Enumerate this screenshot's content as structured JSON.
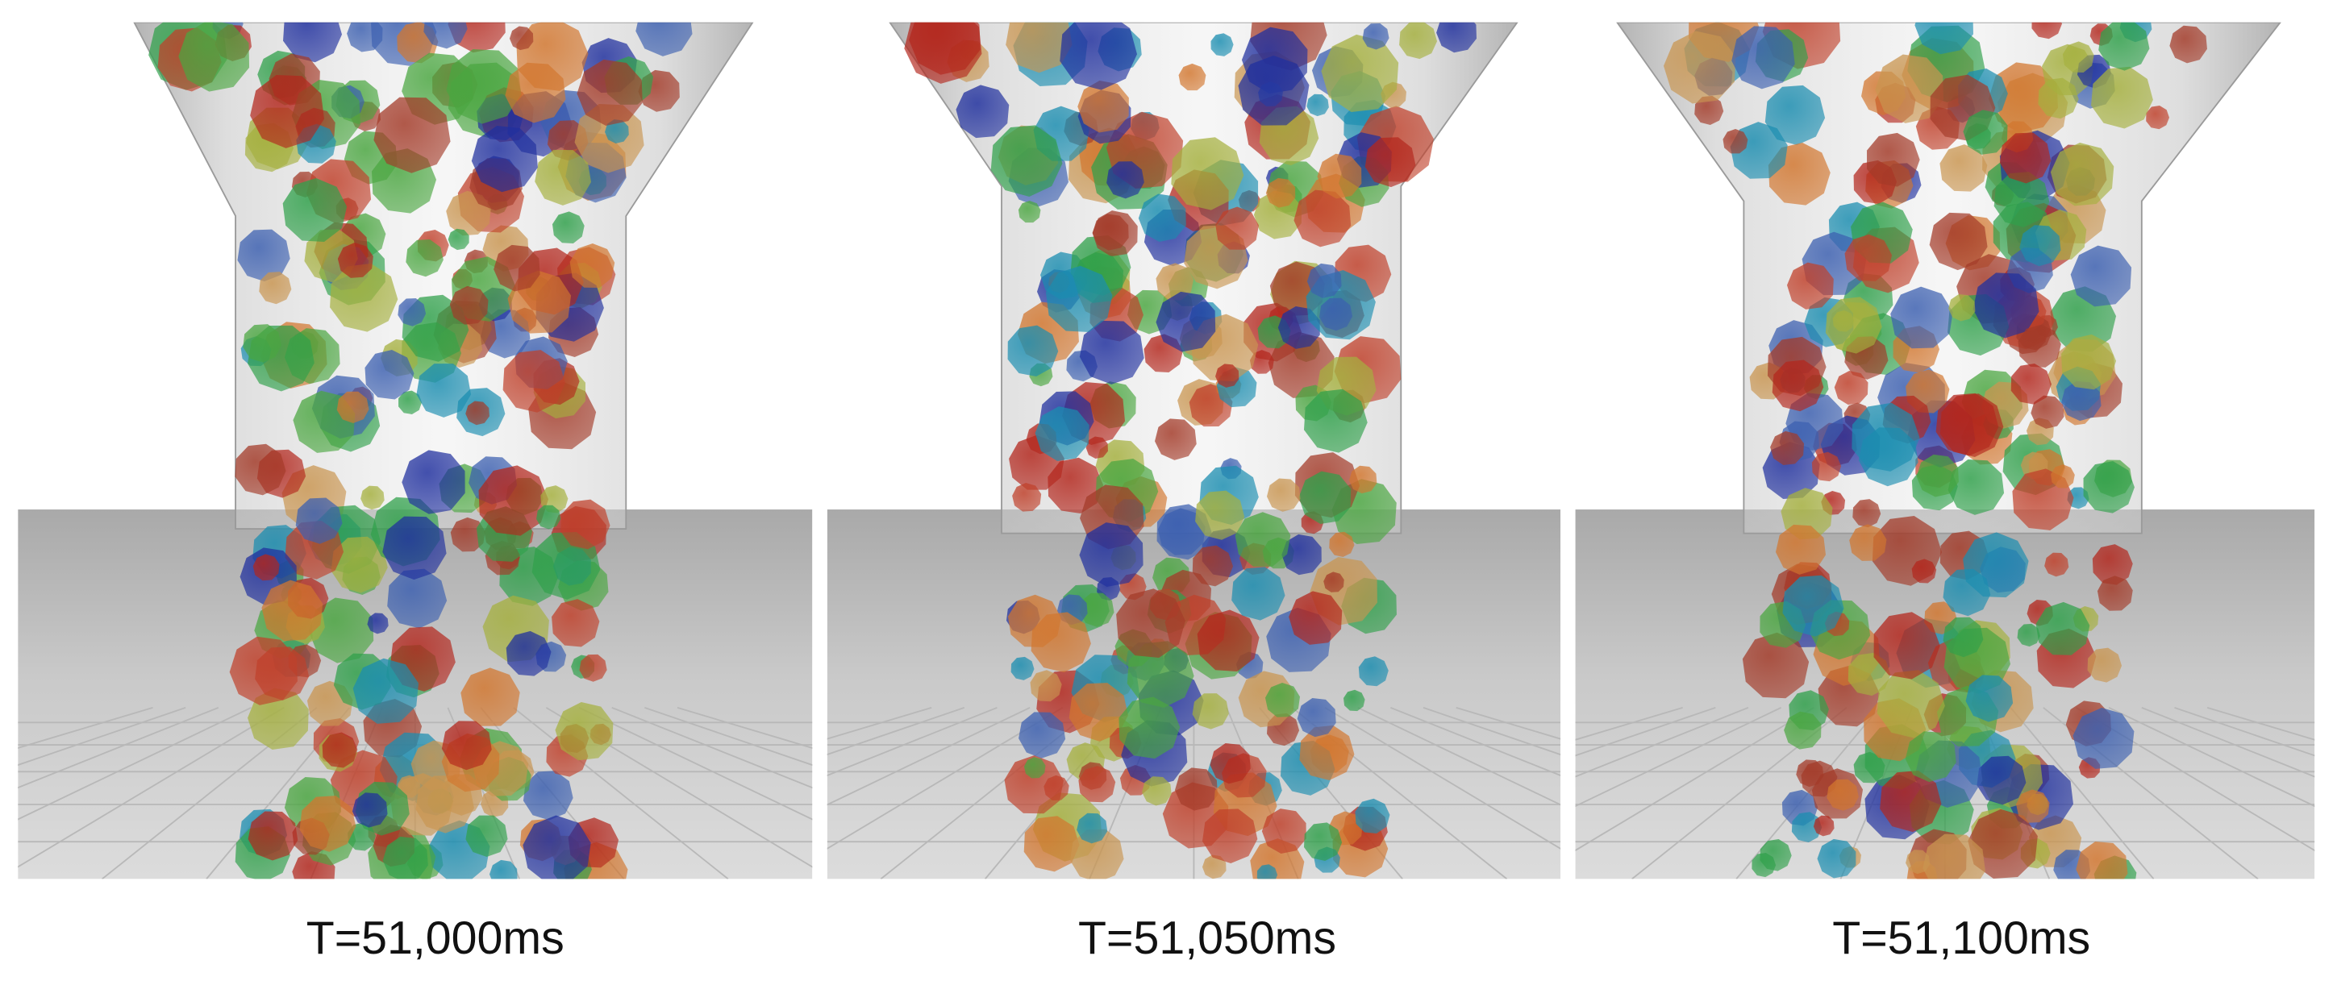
{
  "panels": [
    {
      "caption": "T=51,000ms"
    },
    {
      "caption": "T=51,050ms"
    },
    {
      "caption": "T=51,100ms"
    }
  ]
}
